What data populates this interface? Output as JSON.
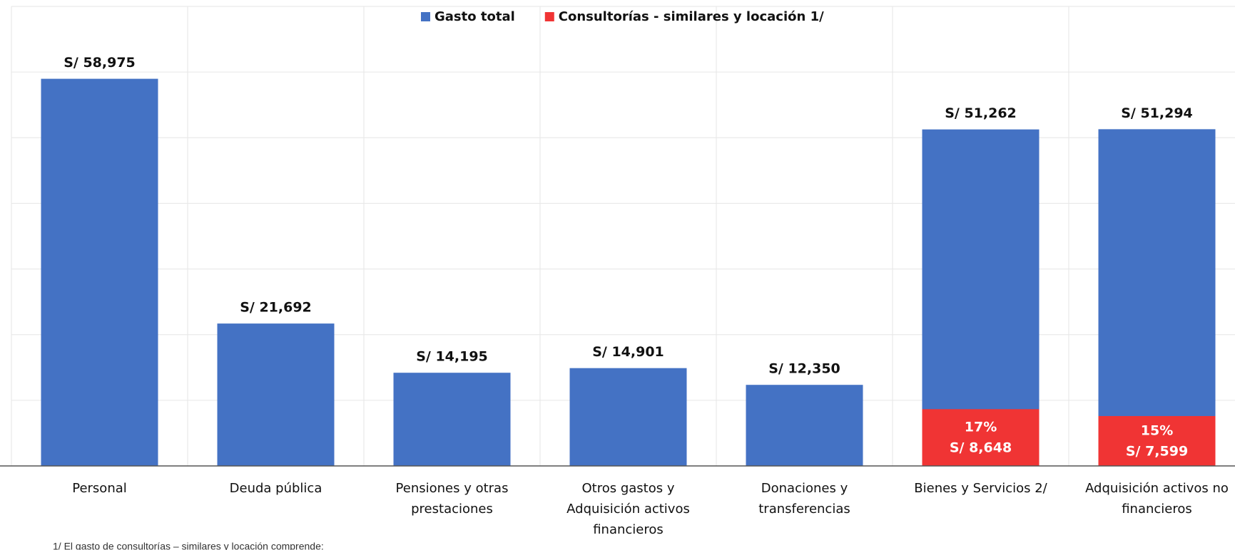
{
  "chart_data": {
    "type": "bar",
    "categories": [
      "Personal",
      "Deuda pública",
      "Pensiones y otras prestaciones",
      "Otros gastos y Adquisición activos financieros",
      "Donaciones y transferencias",
      "Bienes y Servicios 2/",
      "Adquisición activos no financieros"
    ],
    "series": [
      {
        "name": "Gasto total",
        "color": "#4472c4",
        "values": [
          58975,
          21692,
          14195,
          14901,
          12350,
          51262,
          51294
        ],
        "value_labels": [
          "S/ 58,975",
          "S/ 21,692",
          "S/ 14,195",
          "S/ 14,901",
          "S/ 12,350",
          "S/ 51,262",
          "S/ 51,294"
        ]
      },
      {
        "name": "Consultorías - similares y locación 1/",
        "color": "#f03434",
        "values": [
          null,
          null,
          null,
          null,
          null,
          8648,
          7599
        ],
        "value_labels": [
          null,
          null,
          null,
          null,
          null,
          "S/ 8,648",
          "S/ 7,599"
        ],
        "share_labels": [
          null,
          null,
          null,
          null,
          null,
          "17%",
          "15%"
        ]
      }
    ],
    "overlay": true,
    "ylim": [
      0,
      70000
    ],
    "yticks": [
      0,
      10000,
      20000,
      30000,
      40000,
      50000,
      60000,
      70000
    ],
    "grid": true,
    "legend": "top",
    "footnote": "1/ El gasto de consultorías – similares y locación comprende:"
  }
}
